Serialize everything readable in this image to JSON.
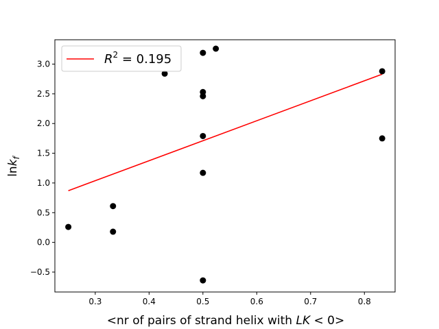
{
  "chart_data": {
    "type": "scatter",
    "xlabel_prefix": "<nr of pairs of strand helix with ",
    "xlabel_math": "LK",
    "xlabel_suffix": " < 0>",
    "ylabel_main": "ln",
    "ylabel_k": "k",
    "ylabel_sub": "f",
    "xlim": [
      0.225,
      0.857
    ],
    "ylim": [
      -0.835,
      3.41
    ],
    "xticks": [
      0.3,
      0.4,
      0.5,
      0.6,
      0.7,
      0.8
    ],
    "xtick_labels": [
      "0.3",
      "0.4",
      "0.5",
      "0.6",
      "0.7",
      "0.8"
    ],
    "yticks": [
      -0.5,
      0.0,
      0.5,
      1.0,
      1.5,
      2.0,
      2.5,
      3.0
    ],
    "ytick_labels": [
      "−0.5",
      "0.0",
      "0.5",
      "1.0",
      "1.5",
      "2.0",
      "2.5",
      "3.0"
    ],
    "grid": false,
    "legend_position": "top-left",
    "series": [
      {
        "kind": "scatter",
        "color": "#000000",
        "points": [
          {
            "x": 0.25,
            "y": 0.26
          },
          {
            "x": 0.333,
            "y": 0.61
          },
          {
            "x": 0.333,
            "y": 0.18
          },
          {
            "x": 0.429,
            "y": 2.84
          },
          {
            "x": 0.5,
            "y": 3.19
          },
          {
            "x": 0.5,
            "y": 2.53
          },
          {
            "x": 0.5,
            "y": 2.46
          },
          {
            "x": 0.5,
            "y": 1.79
          },
          {
            "x": 0.5,
            "y": 1.17
          },
          {
            "x": 0.5,
            "y": -0.64
          },
          {
            "x": 0.524,
            "y": 3.26
          },
          {
            "x": 0.833,
            "y": 2.88
          },
          {
            "x": 0.833,
            "y": 1.75
          }
        ]
      },
      {
        "kind": "line",
        "color": "#ff0000",
        "legend_label_R": "R",
        "legend_label_exp": "2",
        "legend_label_value": " = 0.195",
        "points": [
          {
            "x": 0.25,
            "y": 0.87
          },
          {
            "x": 0.833,
            "y": 2.83
          }
        ]
      }
    ]
  }
}
